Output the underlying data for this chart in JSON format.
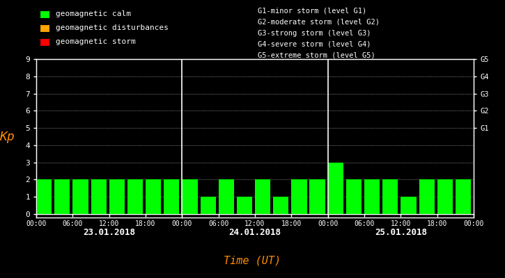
{
  "background_color": "#000000",
  "plot_bg_color": "#000000",
  "bar_color_calm": "#00ff00",
  "bar_color_disturbance": "#ffa500",
  "bar_color_storm": "#ff0000",
  "kp_values": [
    2,
    2,
    2,
    2,
    2,
    2,
    2,
    2,
    2,
    1,
    2,
    1,
    2,
    1,
    2,
    2,
    3,
    2,
    2,
    2,
    1,
    2,
    2,
    2
  ],
  "ylim": [
    0,
    9
  ],
  "yticks": [
    0,
    1,
    2,
    3,
    4,
    5,
    6,
    7,
    8,
    9
  ],
  "ylabel": "Kp",
  "ylabel_color": "#ff8c00",
  "xlabel": "Time (UT)",
  "xlabel_color": "#ff8c00",
  "tick_color": "#ffffff",
  "spine_color": "#ffffff",
  "dot_color": "#ffffff",
  "legend_items": [
    {
      "label": "geomagnetic calm",
      "color": "#00ff00"
    },
    {
      "label": "geomagnetic disturbances",
      "color": "#ffa500"
    },
    {
      "label": "geomagnetic storm",
      "color": "#ff0000"
    }
  ],
  "right_legend_texts": [
    "G1-minor storm (level G1)",
    "G2-moderate storm (level G2)",
    "G3-strong storm (level G3)",
    "G4-severe storm (level G4)",
    "G5-extreme storm (level G5)"
  ],
  "right_axis_labels": [
    {
      "text": "G5",
      "y": 9
    },
    {
      "text": "G4",
      "y": 8
    },
    {
      "text": "G3",
      "y": 7
    },
    {
      "text": "G2",
      "y": 6
    },
    {
      "text": "G1",
      "y": 5
    }
  ],
  "day_labels": [
    "23.01.2018",
    "24.01.2018",
    "25.01.2018"
  ],
  "xtick_labels": [
    "00:00",
    "06:00",
    "12:00",
    "18:00",
    "00:00",
    "06:00",
    "12:00",
    "18:00",
    "00:00",
    "06:00",
    "12:00",
    "18:00",
    "00:00"
  ],
  "num_days": 3,
  "bars_per_day": 8,
  "bar_width": 0.85,
  "font_color": "#ffffff",
  "font_family": "monospace",
  "fig_width": 7.25,
  "fig_height": 4.0,
  "dpi": 100
}
